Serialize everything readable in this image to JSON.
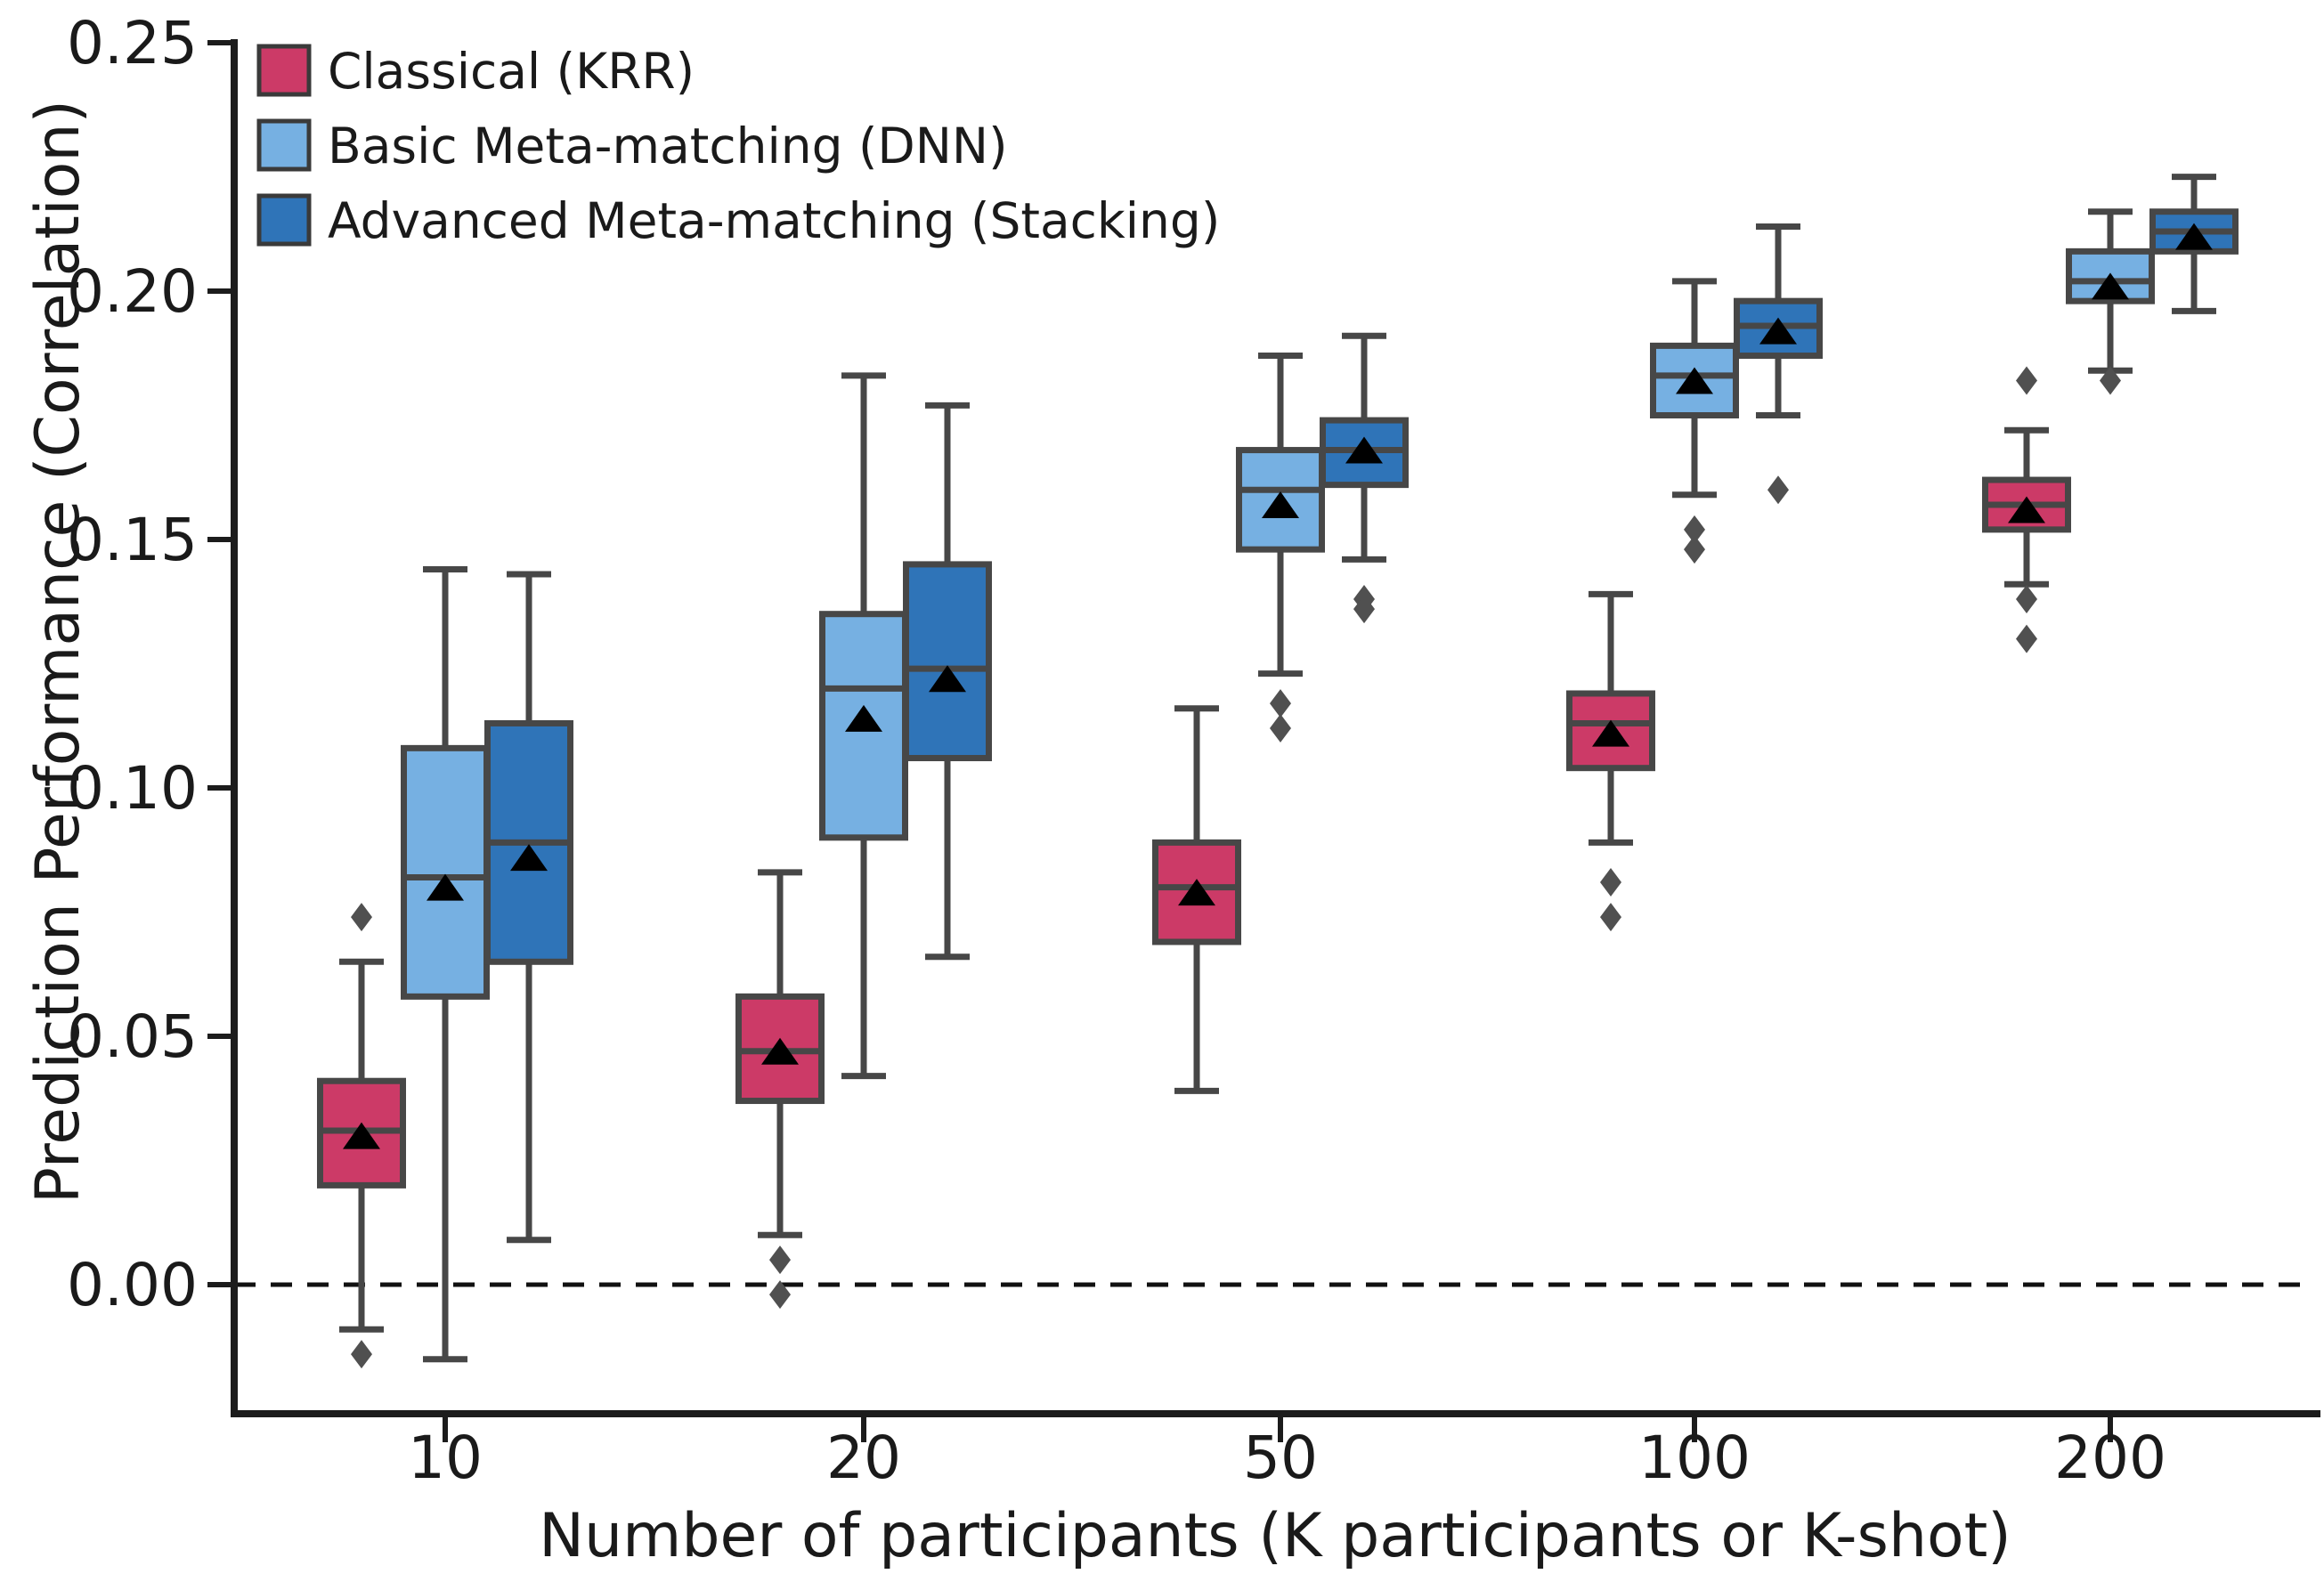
{
  "chart_data": {
    "type": "boxplot",
    "title": "",
    "xlabel": "Number of participants (K participants or K-shot)",
    "ylabel": "Prediction Performance (Correlation)",
    "categories": [
      "10",
      "20",
      "50",
      "100",
      "200"
    ],
    "yticks": [
      0.0,
      0.05,
      0.1,
      0.15,
      0.2,
      0.25
    ],
    "ytick_labels": [
      "0.00",
      "0.05",
      "0.10",
      "0.15",
      "0.20",
      "0.25"
    ],
    "ylim": [
      -0.026,
      0.259
    ],
    "grid": false,
    "legend_position": "upper-left",
    "zero_line": {
      "y": 0.0,
      "style": "dashed",
      "color": "#111111"
    },
    "colors": {
      "classical": "#CC3A67",
      "basic": "#76B0E2",
      "advanced": "#2F74B8",
      "box_edge": "#474747",
      "flier": "#505050",
      "mean_marker": "#000000",
      "axis": "#1c1c1c"
    },
    "series": [
      {
        "name": "Classical (KRR)",
        "color": "#CC3A67",
        "boxes": [
          {
            "whislo": -0.009,
            "q1": 0.02,
            "med": 0.031,
            "mean": 0.03,
            "q3": 0.041,
            "whishi": 0.065,
            "fliers": [
              0.074,
              -0.014
            ]
          },
          {
            "whislo": 0.01,
            "q1": 0.037,
            "med": 0.047,
            "mean": 0.047,
            "q3": 0.058,
            "whishi": 0.083,
            "fliers": [
              0.005,
              -0.002
            ]
          },
          {
            "whislo": 0.039,
            "q1": 0.069,
            "med": 0.08,
            "mean": 0.079,
            "q3": 0.089,
            "whishi": 0.116,
            "fliers": []
          },
          {
            "whislo": 0.089,
            "q1": 0.104,
            "med": 0.113,
            "mean": 0.111,
            "q3": 0.119,
            "whishi": 0.139,
            "fliers": [
              0.081,
              0.074
            ]
          },
          {
            "whislo": 0.141,
            "q1": 0.152,
            "med": 0.157,
            "mean": 0.156,
            "q3": 0.162,
            "whishi": 0.172,
            "fliers": [
              0.182,
              0.138,
              0.13
            ]
          }
        ]
      },
      {
        "name": "Basic Meta-matching (DNN)",
        "color": "#76B0E2",
        "boxes": [
          {
            "whislo": -0.015,
            "q1": 0.058,
            "med": 0.082,
            "mean": 0.08,
            "q3": 0.108,
            "whishi": 0.144,
            "fliers": []
          },
          {
            "whislo": 0.042,
            "q1": 0.09,
            "med": 0.12,
            "mean": 0.114,
            "q3": 0.135,
            "whishi": 0.183,
            "fliers": []
          },
          {
            "whislo": 0.123,
            "q1": 0.148,
            "med": 0.16,
            "mean": 0.157,
            "q3": 0.168,
            "whishi": 0.187,
            "fliers": [
              0.117,
              0.112
            ]
          },
          {
            "whislo": 0.159,
            "q1": 0.175,
            "med": 0.183,
            "mean": 0.182,
            "q3": 0.189,
            "whishi": 0.202,
            "fliers": [
              0.152,
              0.148
            ]
          },
          {
            "whislo": 0.184,
            "q1": 0.198,
            "med": 0.202,
            "mean": 0.201,
            "q3": 0.208,
            "whishi": 0.216,
            "fliers": [
              0.182
            ]
          }
        ]
      },
      {
        "name": "Advanced Meta-matching (Stacking)",
        "color": "#2F74B8",
        "boxes": [
          {
            "whislo": 0.009,
            "q1": 0.065,
            "med": 0.089,
            "mean": 0.086,
            "q3": 0.113,
            "whishi": 0.143,
            "fliers": []
          },
          {
            "whislo": 0.066,
            "q1": 0.106,
            "med": 0.124,
            "mean": 0.122,
            "q3": 0.145,
            "whishi": 0.177,
            "fliers": []
          },
          {
            "whislo": 0.146,
            "q1": 0.161,
            "med": 0.168,
            "mean": 0.168,
            "q3": 0.174,
            "whishi": 0.191,
            "fliers": [
              0.138,
              0.136
            ]
          },
          {
            "whislo": 0.175,
            "q1": 0.187,
            "med": 0.193,
            "mean": 0.192,
            "q3": 0.198,
            "whishi": 0.213,
            "fliers": [
              0.16
            ]
          },
          {
            "whislo": 0.196,
            "q1": 0.208,
            "med": 0.212,
            "mean": 0.211,
            "q3": 0.216,
            "whishi": 0.223,
            "fliers": []
          }
        ]
      }
    ]
  }
}
